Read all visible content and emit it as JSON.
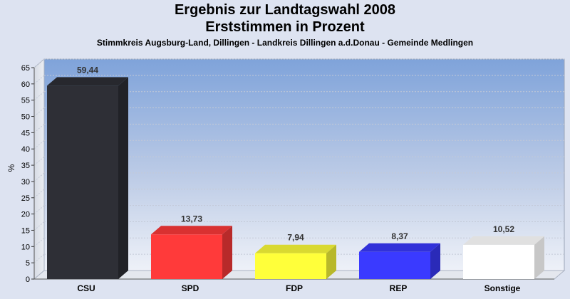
{
  "header": {
    "title": "Ergebnis zur Landtagswahl 2008",
    "subtitle": "Erststimmen in Prozent",
    "caption": "Stimmkreis Augsburg-Land, Dillingen - Landkreis Dillingen a.d.Donau - Gemeinde Medlingen"
  },
  "chart_data": {
    "type": "bar",
    "title": "Ergebnis zur Landtagswahl 2008",
    "subtitle": "Erststimmen in Prozent",
    "xlabel": "",
    "ylabel": "%",
    "ylim": [
      0,
      65
    ],
    "yticks": [
      0,
      5,
      10,
      15,
      20,
      25,
      30,
      35,
      40,
      45,
      50,
      55,
      60,
      65
    ],
    "grid": true,
    "legend": "none",
    "categories": [
      "CSU",
      "SPD",
      "FDP",
      "REP",
      "Sonstige"
    ],
    "values": [
      59.44,
      13.73,
      7.94,
      8.37,
      10.52
    ],
    "data_labels": [
      "59,44",
      "13,73",
      "7,94",
      "8,37",
      "10,52"
    ],
    "colors": [
      "#2e2f36",
      "#ff3a3a",
      "#ffff3a",
      "#3a3aff",
      "#ffffff"
    ]
  }
}
